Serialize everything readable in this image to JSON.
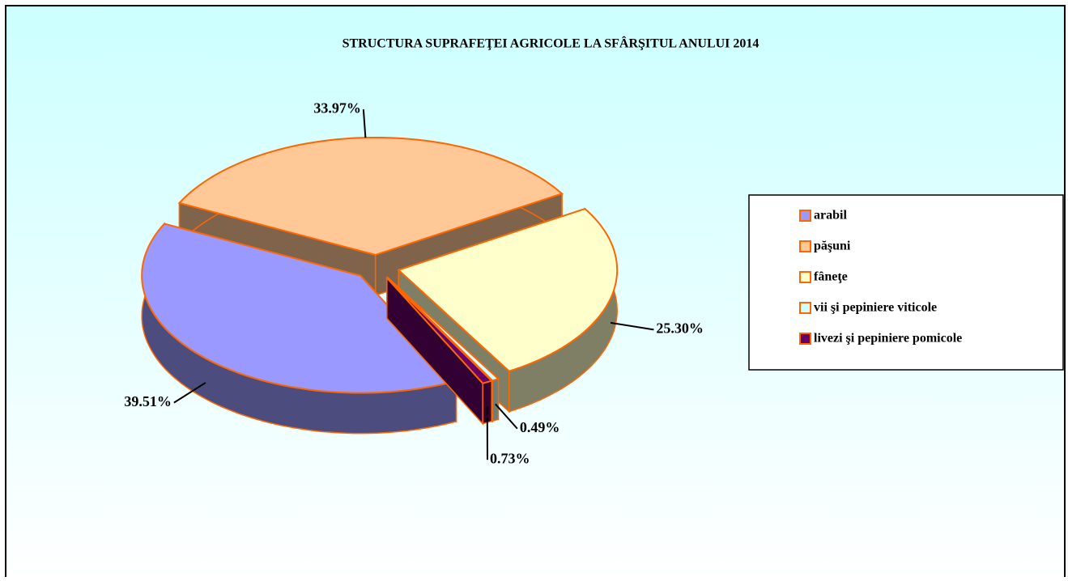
{
  "chart_data": {
    "type": "pie3d",
    "title": "STRUCTURA SUPRAFEŢEI AGRICOLE LA SFÂRŞITUL ANULUI 2014",
    "categories": [
      "arabil",
      "păşuni",
      "fâneţe",
      "vii şi pepiniere viticole",
      "livezi şi pepiniere pomicole"
    ],
    "values": [
      39.51,
      33.97,
      25.3,
      0.49,
      0.73
    ],
    "value_labels": [
      "39.51%",
      "33.97%",
      "25.30%",
      "0.49%",
      "0.73%"
    ],
    "colors": [
      "#9999ff",
      "#ffc896",
      "#ffffcc",
      "#ccffff",
      "#660066"
    ],
    "edge_color": "#ff6600",
    "legend": "right"
  }
}
